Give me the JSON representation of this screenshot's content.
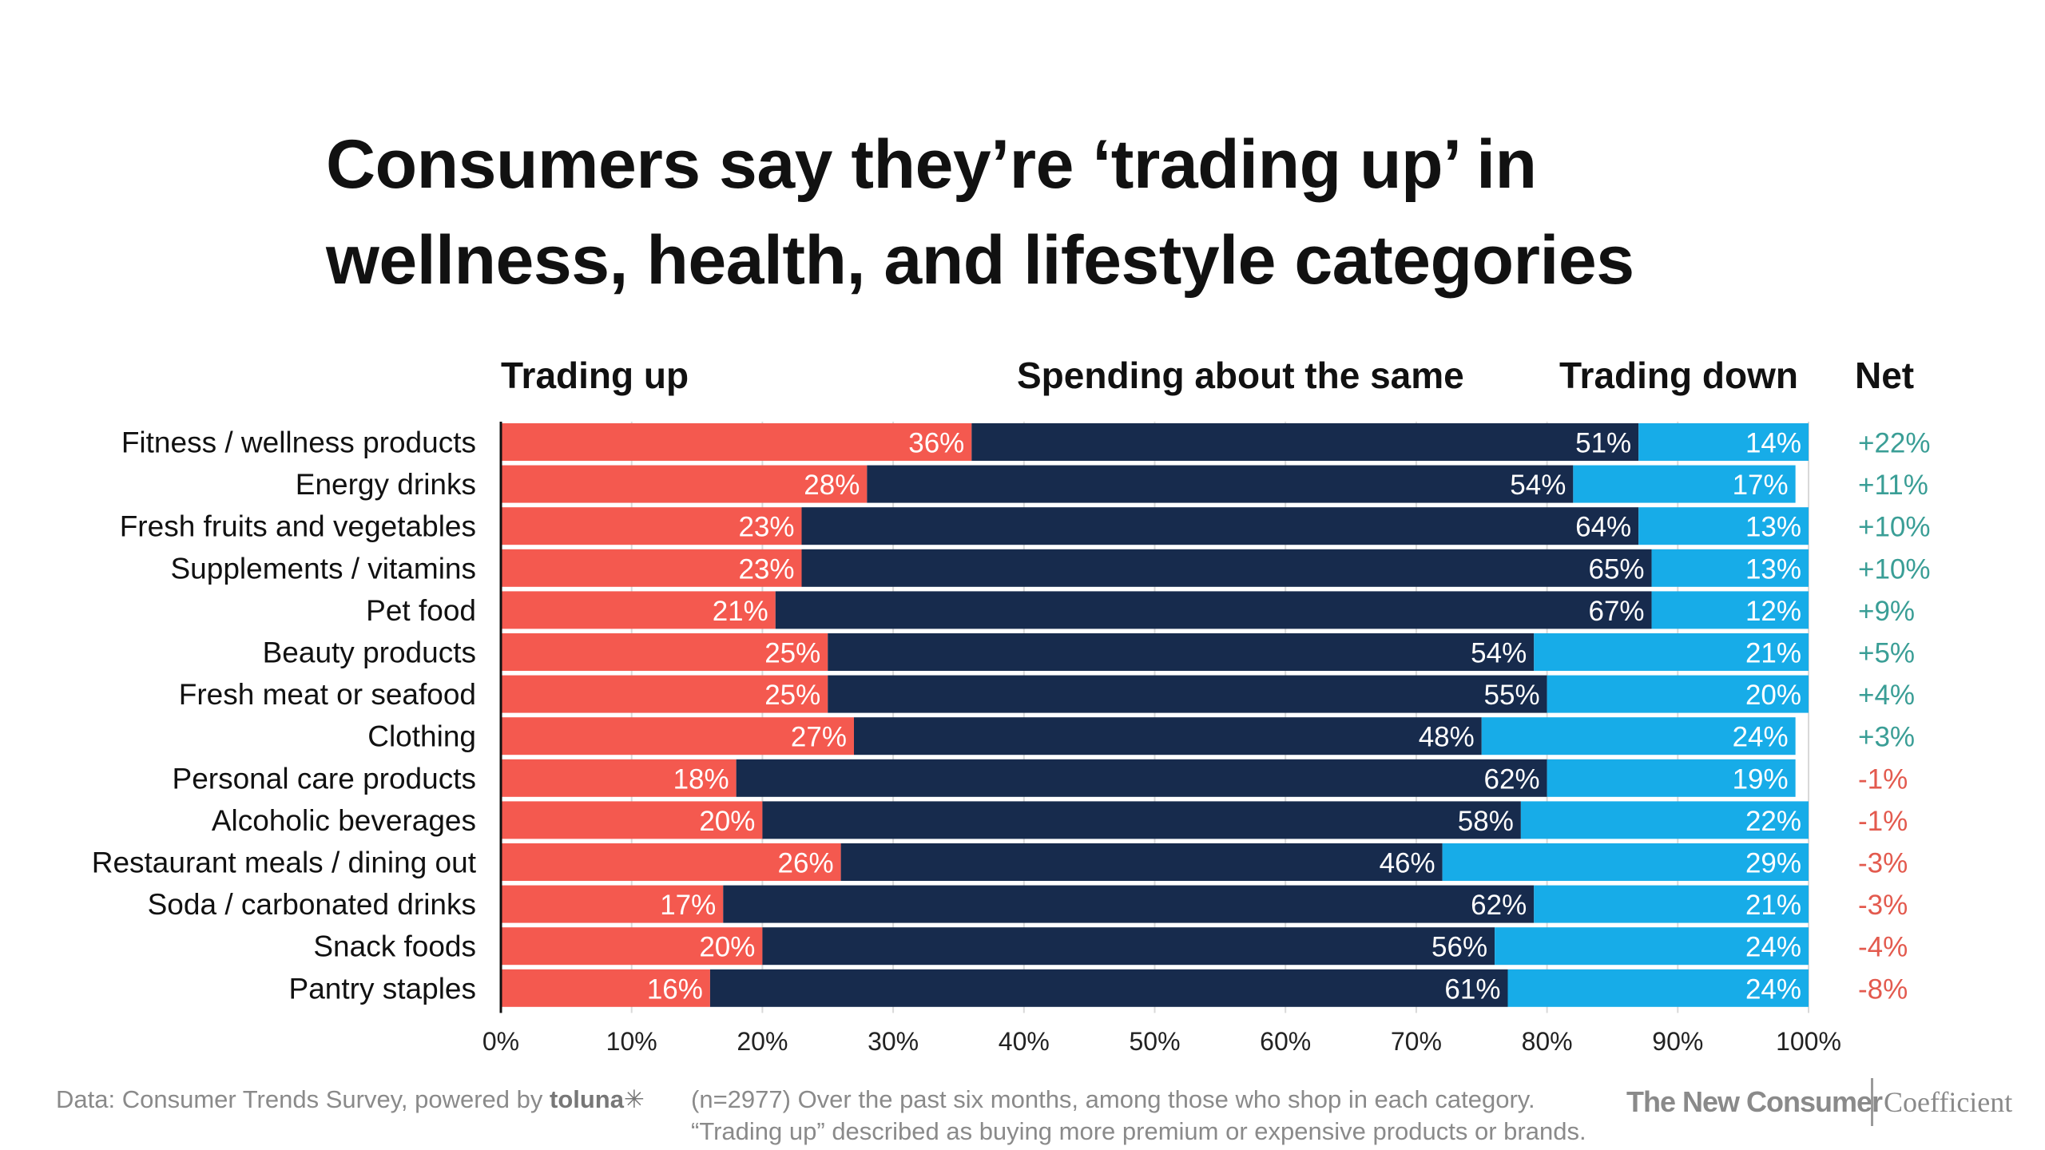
{
  "chart_data": {
    "type": "bar",
    "stacked": true,
    "orientation": "horizontal",
    "title": "Consumers say they’re ‘trading up’ in wellness, health, and lifestyle categories",
    "title_lines": [
      "Consumers say they’re ‘trading up’ in",
      "wellness, health, and lifestyle categories"
    ],
    "column_headers": {
      "trading_up": "Trading up",
      "same": "Spending about the same",
      "trading_down": "Trading down",
      "net": "Net"
    },
    "categories": [
      "Fitness / wellness products",
      "Energy drinks",
      "Fresh fruits and vegetables",
      "Supplements / vitamins",
      "Pet food",
      "Beauty products",
      "Fresh meat or seafood",
      "Clothing",
      "Personal care products",
      "Alcoholic beverages",
      "Restaurant meals / dining out",
      "Soda / carbonated drinks",
      "Snack foods",
      "Pantry staples"
    ],
    "series": [
      {
        "name": "Trading up",
        "color": "#f4594f",
        "values": [
          36,
          28,
          23,
          23,
          21,
          25,
          25,
          27,
          18,
          20,
          26,
          17,
          20,
          16
        ],
        "labels": [
          "36%",
          "28%",
          "23%",
          "23%",
          "21%",
          "25%",
          "25%",
          "27%",
          "18%",
          "20%",
          "26%",
          "17%",
          "20%",
          "16%"
        ]
      },
      {
        "name": "Spending about the same",
        "color": "#172b4d",
        "values": [
          51,
          54,
          64,
          65,
          67,
          54,
          55,
          48,
          62,
          58,
          46,
          62,
          56,
          61
        ],
        "labels": [
          "51%",
          "54%",
          "64%",
          "65%",
          "67%",
          "54%",
          "55%",
          "48%",
          "62%",
          "58%",
          "46%",
          "62%",
          "56%",
          "61%"
        ]
      },
      {
        "name": "Trading down",
        "color": "#17ace8",
        "values": [
          14,
          17,
          13,
          13,
          12,
          21,
          20,
          24,
          19,
          22,
          29,
          21,
          24,
          24
        ],
        "labels": [
          "14%",
          "17%",
          "13%",
          "13%",
          "12%",
          "21%",
          "20%",
          "24%",
          "19%",
          "22%",
          "29%",
          "21%",
          "24%",
          "24%"
        ]
      }
    ],
    "net": [
      "+22%",
      "+11%",
      "+10%",
      "+10%",
      "+9%",
      "+5%",
      "+4%",
      "+3%",
      "-1%",
      "-1%",
      "-3%",
      "-3%",
      "-4%",
      "-8%"
    ],
    "net_colors": {
      "positive": "#3a9e96",
      "negative": "#e35a4e"
    },
    "xlim": [
      0,
      100
    ],
    "xticks": [
      "0%",
      "10%",
      "20%",
      "30%",
      "40%",
      "50%",
      "60%",
      "70%",
      "80%",
      "90%",
      "100%"
    ],
    "grid": true,
    "label_color": "#ffffff"
  },
  "footer": {
    "source_prefix": "Data: Consumer Trends Survey, powered by",
    "source_brand": "toluna✳",
    "note_line1": "(n=2977) Over the past six months, among those who shop in each category.",
    "note_line2": "“Trading up” described as buying more premium or expensive products or brands."
  },
  "brands": {
    "left": "The New Consumer",
    "right": "Coefficient"
  }
}
